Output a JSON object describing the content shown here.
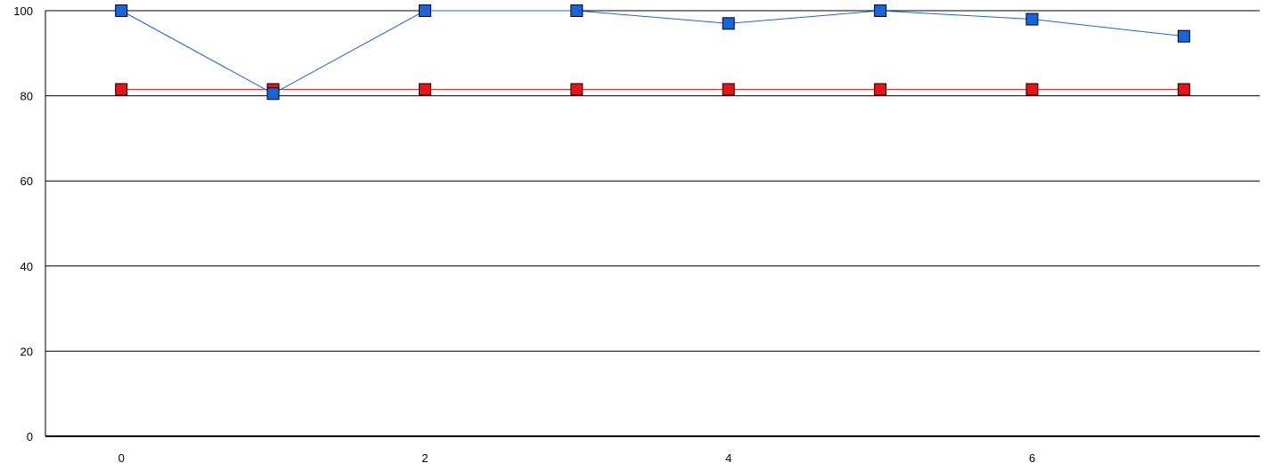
{
  "chart_data": {
    "type": "line",
    "title": "",
    "xlabel": "",
    "ylabel": "",
    "x": [
      0,
      1,
      2,
      3,
      4,
      5,
      6,
      7
    ],
    "xlim": [
      -0.5,
      7.5
    ],
    "ylim": [
      0,
      100
    ],
    "x_ticks": [
      0,
      2,
      4,
      6
    ],
    "x_tick_labels": [
      "0",
      "2",
      "4",
      "6"
    ],
    "y_ticks": [
      0,
      20,
      40,
      60,
      80,
      100
    ],
    "y_tick_labels": [
      "0",
      "20",
      "40",
      "60",
      "80",
      "100"
    ],
    "grid": "horizontal",
    "legend": "none",
    "series": [
      {
        "values": [
          100,
          80.5,
          100,
          100,
          97,
          100,
          98,
          94
        ],
        "color": "#1565e0",
        "marker": "square"
      },
      {
        "values": [
          81.5,
          81.5,
          81.5,
          81.5,
          81.5,
          81.5,
          81.5,
          81.5
        ],
        "color": "#ee1111",
        "marker": "square"
      }
    ]
  }
}
